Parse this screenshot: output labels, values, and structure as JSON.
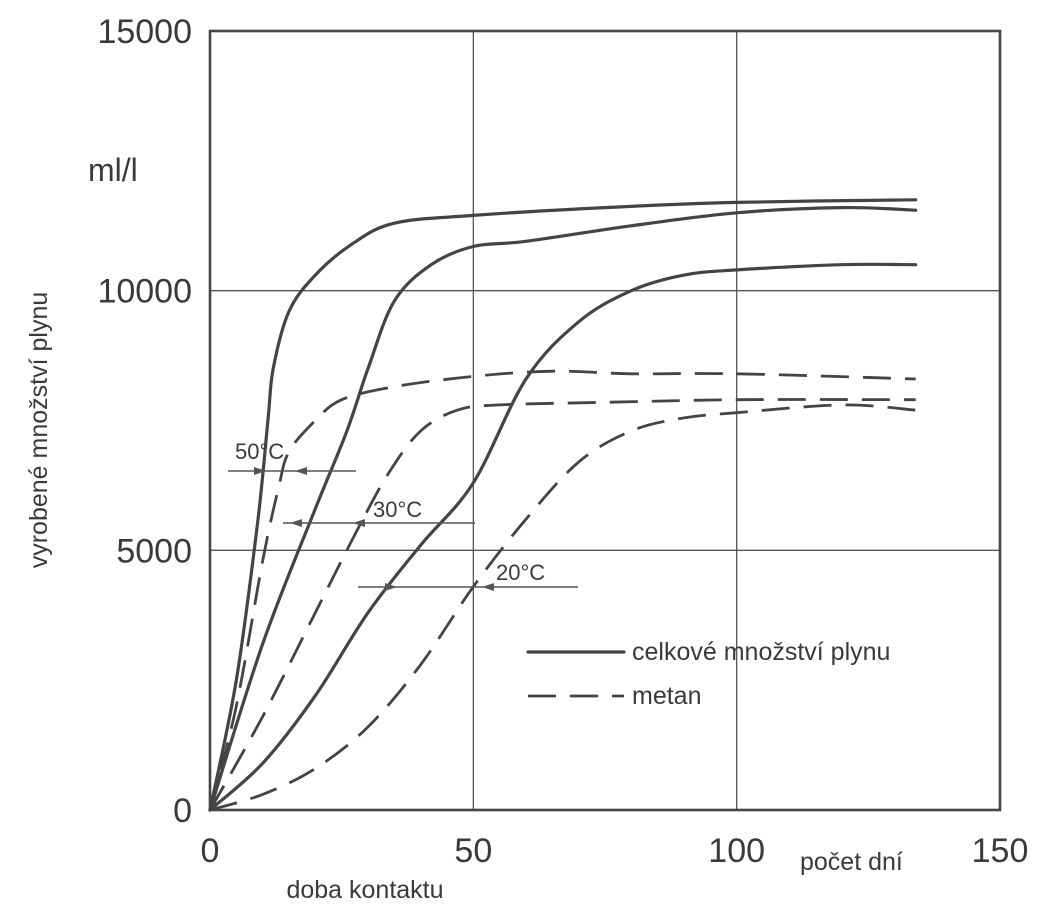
{
  "chart_data": {
    "type": "line",
    "ylabel": "vyrobené množství plynu",
    "xlabel": "doba kontaktu",
    "x_unit": "počet dní",
    "y_unit": "ml/l",
    "xlim": [
      0,
      150
    ],
    "ylim": [
      0,
      15000
    ],
    "x_ticks": [
      "0",
      "50",
      "100",
      "150"
    ],
    "y_ticks": [
      "0",
      "5000",
      "10000",
      "15000"
    ],
    "x_tick_values": [
      0,
      50,
      100,
      150
    ],
    "y_tick_values": [
      0,
      5000,
      10000,
      15000
    ],
    "grid": true,
    "legend_position": "bottom-right",
    "legend": [
      {
        "label": "celkové množství plynu",
        "style": "solid"
      },
      {
        "label": "metan",
        "style": "dashed"
      }
    ],
    "temperature_labels": [
      "50°C",
      "30°C",
      "20°C"
    ],
    "series": [
      {
        "group": "total",
        "temperature": "50°C",
        "points": [
          [
            0,
            0
          ],
          [
            5,
            2500
          ],
          [
            9,
            5500
          ],
          [
            11,
            7500
          ],
          [
            12,
            8500
          ],
          [
            15,
            9600
          ],
          [
            20,
            10300
          ],
          [
            27,
            10900
          ],
          [
            35,
            11300
          ],
          [
            50,
            11450
          ],
          [
            75,
            11600
          ],
          [
            100,
            11700
          ],
          [
            134,
            11750
          ]
        ]
      },
      {
        "group": "total",
        "temperature": "30°C",
        "points": [
          [
            0,
            0
          ],
          [
            10,
            3200
          ],
          [
            20,
            5800
          ],
          [
            26,
            7300
          ],
          [
            30,
            8500
          ],
          [
            35,
            9800
          ],
          [
            42,
            10500
          ],
          [
            50,
            10850
          ],
          [
            60,
            10950
          ],
          [
            80,
            11250
          ],
          [
            100,
            11500
          ],
          [
            120,
            11600
          ],
          [
            134,
            11550
          ]
        ]
      },
      {
        "group": "total",
        "temperature": "20°C",
        "points": [
          [
            0,
            0
          ],
          [
            10,
            900
          ],
          [
            20,
            2200
          ],
          [
            30,
            3800
          ],
          [
            40,
            5100
          ],
          [
            50,
            6300
          ],
          [
            60,
            8300
          ],
          [
            70,
            9400
          ],
          [
            80,
            10000
          ],
          [
            90,
            10300
          ],
          [
            100,
            10400
          ],
          [
            120,
            10500
          ],
          [
            134,
            10500
          ]
        ]
      },
      {
        "group": "methane",
        "temperature": "50°C",
        "points": [
          [
            0,
            0
          ],
          [
            5,
            2000
          ],
          [
            10,
            4800
          ],
          [
            13,
            6200
          ],
          [
            15,
            6900
          ],
          [
            20,
            7500
          ],
          [
            25,
            7900
          ],
          [
            35,
            8150
          ],
          [
            50,
            8350
          ],
          [
            65,
            8450
          ],
          [
            80,
            8400
          ],
          [
            100,
            8400
          ],
          [
            134,
            8300
          ]
        ]
      },
      {
        "group": "methane",
        "temperature": "30°C",
        "points": [
          [
            0,
            0
          ],
          [
            10,
            1800
          ],
          [
            20,
            3800
          ],
          [
            28,
            5400
          ],
          [
            34,
            6500
          ],
          [
            40,
            7300
          ],
          [
            47,
            7700
          ],
          [
            55,
            7800
          ],
          [
            75,
            7850
          ],
          [
            100,
            7900
          ],
          [
            134,
            7900
          ]
        ]
      },
      {
        "group": "methane",
        "temperature": "20°C",
        "points": [
          [
            0,
            0
          ],
          [
            10,
            300
          ],
          [
            20,
            800
          ],
          [
            30,
            1600
          ],
          [
            40,
            2800
          ],
          [
            50,
            4300
          ],
          [
            60,
            5600
          ],
          [
            70,
            6700
          ],
          [
            80,
            7300
          ],
          [
            90,
            7550
          ],
          [
            100,
            7650
          ],
          [
            120,
            7800
          ],
          [
            134,
            7700
          ]
        ]
      }
    ]
  }
}
